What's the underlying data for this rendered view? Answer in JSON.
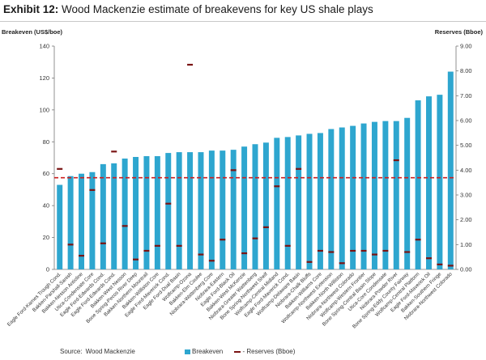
{
  "exhibit": {
    "label": "Exhibit 12:",
    "title": "Wood Mackenzie estimate of breakevens for key US shale plays"
  },
  "source": {
    "label": "Source:",
    "text": "Wood Mackenzie"
  },
  "colors": {
    "bar": "#2ea6cf",
    "reserve_marker": "#7a1414",
    "reference_line": "#cc1f1f"
  },
  "chart_data": {
    "type": "bar",
    "y_left_label": "Breakeven (US$/boe)",
    "y_right_label": "Reserves (Bboe)",
    "y_left_range": [
      0,
      140
    ],
    "y_left_ticks": [
      "0",
      "20",
      "40",
      "60",
      "80",
      "100",
      "120",
      "140"
    ],
    "y_right_range": [
      0,
      9
    ],
    "y_right_ticks": [
      "0.00",
      "1.00",
      "2.00",
      "3.00",
      "4.00",
      "5.00",
      "6.00",
      "7.00",
      "8.00",
      "9.00"
    ],
    "reference_line_value": 57.5,
    "grid": false,
    "legend": {
      "placement": "bottom",
      "breakeven_label": "Breakeven",
      "reserves_label": "- Reserves (Bboe)"
    },
    "categories": [
      "Eagle Ford-Karnes Trough Cond.",
      "Bakken-Parshall-Sanish",
      "Bakken-Nesson Anticline",
      "Utica-Condensate Core",
      "Eagle Ford-Edwards Cond.",
      "Eagle Ford-Edwards Cond.",
      "Bakken-West Nesson",
      "Bone Spring-Pecos River Deep",
      "Bakken-Northern Mountrail",
      "Bakken-Williston Core",
      "Eagle Ford-Maverick Cond.",
      "Eagle Ford-Dual Basin",
      "Wolfcamp-Ozona",
      "Bakken-Elm Coulee",
      "Niobrara-Wattenberg Core",
      "Niobrara-Eastern",
      "Eagle Ford-Black Oil",
      "Bakken-West McKenzie",
      "Niobrara-Greater Wattenberg",
      "Bone Spring-Northwest Shelf",
      "Wolfcamp-Central Midland",
      "Eagle Ford-Maverick Cond.",
      "Wolfcamp-Delaware Basin",
      "Niobrara-Chalk Bluffs",
      "Bakken-Williams Core",
      "Wolfcamp-Northwest Extension",
      "Bakken-North Williston",
      "Niobrara-Northwest Colorado",
      "Wolfcamp-Western Frontier",
      "Bone Spring-Central Basin Slope",
      "Utica-Core Condensate",
      "Niobrara-Powder River",
      "Bone Spring-Eddy County Fairway",
      "Wolfcamp-Central Platform",
      "Eagle Ford-Maverick Oil",
      "Bakken-Southern Fringe",
      "Niobrara-Northwest Colorado"
    ],
    "series": [
      {
        "name": "Breakeven",
        "axis": "left",
        "values": [
          53,
          58.5,
          60,
          61,
          66,
          66.5,
          69.5,
          70.5,
          71,
          71,
          73,
          73.5,
          73.5,
          73.5,
          74.5,
          74.5,
          75,
          77,
          78.5,
          79.5,
          82.5,
          83,
          84,
          85,
          85.5,
          88,
          89,
          90,
          91.5,
          92.5,
          93,
          93,
          95,
          106,
          108.5,
          109.5,
          124
        ]
      },
      {
        "name": "Reserves (Bboe)",
        "axis": "right",
        "values": [
          4.05,
          1.0,
          0.55,
          3.2,
          1.05,
          4.75,
          1.75,
          0.4,
          0.75,
          0.95,
          2.65,
          0.95,
          8.25,
          0.6,
          0.35,
          1.2,
          4.0,
          0.65,
          1.25,
          1.7,
          3.35,
          0.95,
          4.05,
          0.3,
          0.75,
          0.7,
          0.25,
          0.75,
          0.75,
          0.6,
          0.75,
          4.4,
          0.7,
          1.2,
          0.45,
          0.2,
          0.15
        ]
      }
    ]
  }
}
